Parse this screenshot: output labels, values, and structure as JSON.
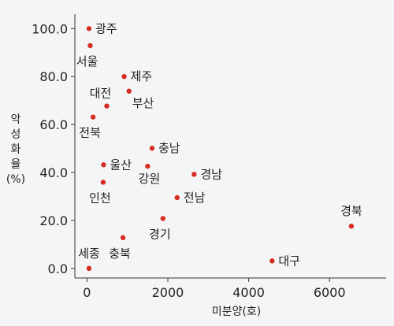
{
  "chart_data": {
    "type": "scatter",
    "xlabel": "미분양(호)",
    "ylabel": [
      "악",
      "성",
      "화",
      "율",
      "(%)"
    ],
    "xlim": [
      -300,
      7400
    ],
    "ylim": [
      -4,
      106
    ],
    "xticks": [
      0,
      2000,
      4000,
      6000
    ],
    "yticks": [
      0.0,
      20.0,
      40.0,
      60.0,
      80.0,
      100.0
    ],
    "ytick_labels": [
      "0.0",
      "20.0",
      "40.0",
      "60.0",
      "80.0",
      "100.0"
    ],
    "grid": false,
    "marker_color": "#d62d20",
    "points": [
      {
        "label": "광주",
        "x": 50,
        "y": 100.0,
        "anchor": "right"
      },
      {
        "label": "서울",
        "x": 80,
        "y": 92.9,
        "anchor": "below"
      },
      {
        "label": "제주",
        "x": 920,
        "y": 80.0,
        "anchor": "right"
      },
      {
        "label": "부산",
        "x": 1040,
        "y": 73.9,
        "anchor": "below-right"
      },
      {
        "label": "대전",
        "x": 490,
        "y": 67.7,
        "anchor": "above-left"
      },
      {
        "label": "전북",
        "x": 150,
        "y": 63.1,
        "anchor": "below"
      },
      {
        "label": "충남",
        "x": 1610,
        "y": 50.1,
        "anchor": "right"
      },
      {
        "label": "울산",
        "x": 410,
        "y": 43.2,
        "anchor": "right"
      },
      {
        "label": "강원",
        "x": 1500,
        "y": 42.6,
        "anchor": "below-left"
      },
      {
        "label": "경남",
        "x": 2650,
        "y": 39.2,
        "anchor": "right"
      },
      {
        "label": "인천",
        "x": 400,
        "y": 35.9,
        "anchor": "below"
      },
      {
        "label": "전남",
        "x": 2230,
        "y": 29.5,
        "anchor": "right"
      },
      {
        "label": "경기",
        "x": 1880,
        "y": 20.8,
        "anchor": "below"
      },
      {
        "label": "경북",
        "x": 6540,
        "y": 17.6,
        "anchor": "above"
      },
      {
        "label": "충북",
        "x": 890,
        "y": 12.8,
        "anchor": "below"
      },
      {
        "label": "대구",
        "x": 4580,
        "y": 3.1,
        "anchor": "right"
      },
      {
        "label": "세종",
        "x": 50,
        "y": 0.0,
        "anchor": "above"
      }
    ]
  }
}
